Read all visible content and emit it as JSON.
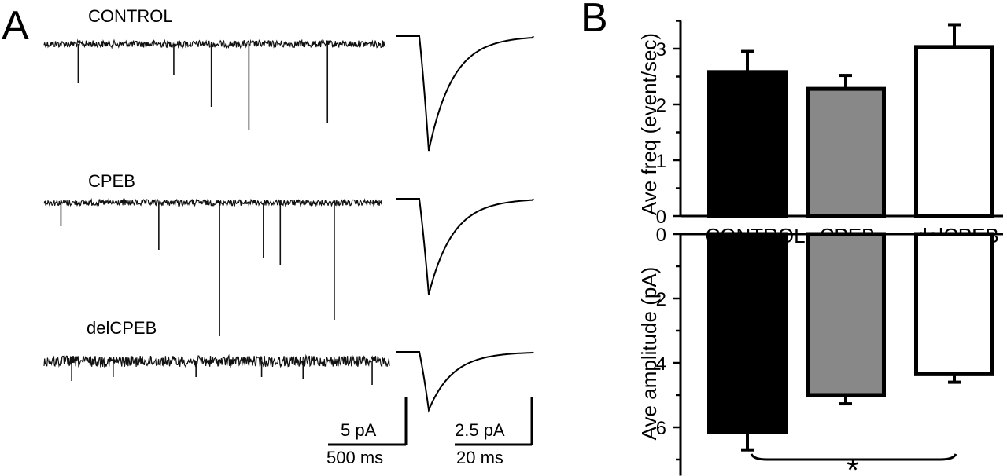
{
  "panel_a": {
    "letter": "A",
    "traces": [
      {
        "label": "CONTROL",
        "noise": 9,
        "events": [
          0.1,
          0.38,
          0.49,
          0.6,
          0.83
        ],
        "avg_amplitude_rel": 1.0
      },
      {
        "label": "CPEB",
        "noise": 8,
        "events": [
          0.05,
          0.34,
          0.52,
          0.65,
          0.7,
          0.86
        ],
        "avg_amplitude_rel": 0.82
      },
      {
        "label": "delCPEB",
        "noise": 14,
        "events": [
          0.08,
          0.2,
          0.44,
          0.63,
          0.75,
          0.95
        ],
        "avg_amplitude_rel": 0.5
      }
    ],
    "scale_bars": {
      "trace_y": "5 pA",
      "trace_x": "500 ms",
      "avg_y": "2.5 pA",
      "avg_x": "20 ms"
    }
  },
  "panel_b": {
    "letter": "B",
    "significance_mark": "*"
  },
  "chart_data": [
    {
      "type": "bar",
      "title": "",
      "categories": [
        "CONTROL",
        "CPEB",
        "delCPEB"
      ],
      "values": [
        2.58,
        2.28,
        3.03
      ],
      "errors": [
        0.37,
        0.24,
        0.4
      ],
      "colors": [
        "#000000",
        "#888888",
        "#ffffff"
      ],
      "xlabel": "",
      "ylabel": "Ave freq (event/sec)",
      "ylim": [
        0,
        3.5
      ],
      "yticks": [
        0,
        1,
        2,
        3
      ]
    },
    {
      "type": "bar",
      "title": "",
      "categories": [
        "CONTROL",
        "CPEB",
        "delCPEB"
      ],
      "values": [
        6.15,
        5.0,
        4.35
      ],
      "errors": [
        0.55,
        0.27,
        0.25
      ],
      "colors": [
        "#000000",
        "#888888",
        "#ffffff"
      ],
      "xlabel": "",
      "ylabel": "Ave amplitude (pA)",
      "ylim": [
        0,
        7.5
      ],
      "yticks": [
        0,
        2,
        4,
        6
      ],
      "axis_inverted": true,
      "significance": {
        "between": [
          "CONTROL",
          "delCPEB"
        ],
        "mark": "*"
      }
    }
  ]
}
